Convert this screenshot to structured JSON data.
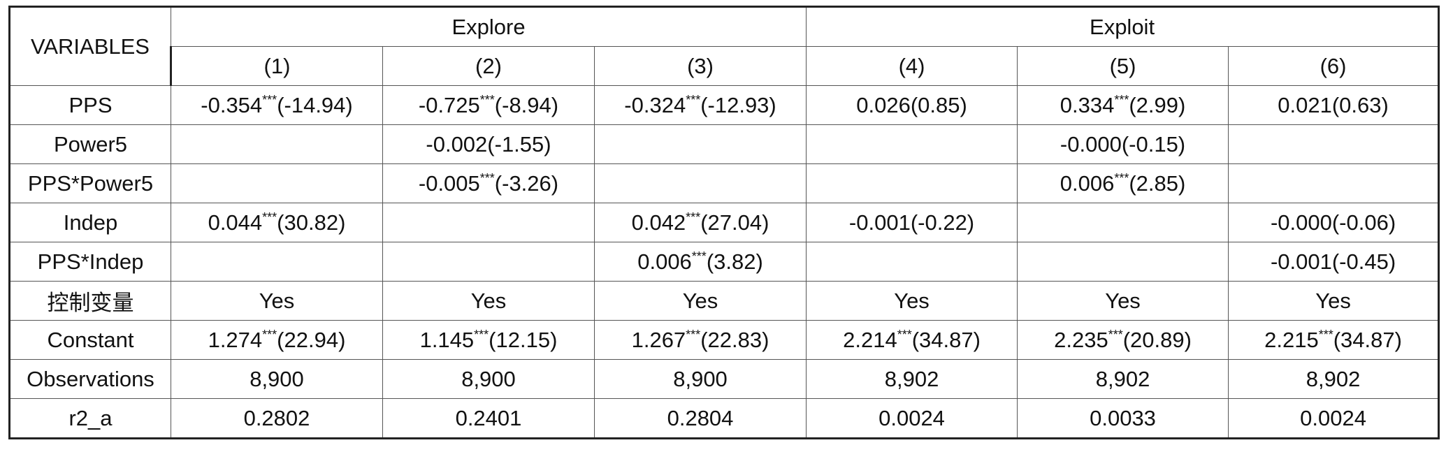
{
  "table": {
    "corner_label": "VARIABLES",
    "groups": [
      {
        "label": "Explore",
        "span": 3
      },
      {
        "label": "Exploit",
        "span": 3
      }
    ],
    "columns": [
      "(1)",
      "(2)",
      "(3)",
      "(4)",
      "(5)",
      "(6)"
    ],
    "rows": [
      {
        "label": "PPS",
        "cells": [
          {
            "coef": "-0.354",
            "stars": "***",
            "t": "(-14.94)"
          },
          {
            "coef": "-0.725",
            "stars": "***",
            "t": "(-8.94)"
          },
          {
            "coef": "-0.324",
            "stars": "***",
            "t": "(-12.93)"
          },
          {
            "coef": "0.026",
            "stars": "",
            "t": "(0.85)"
          },
          {
            "coef": "0.334",
            "stars": "***",
            "t": "(2.99)"
          },
          {
            "coef": "0.021",
            "stars": "",
            "t": "(0.63)"
          }
        ]
      },
      {
        "label": "Power5",
        "cells": [
          {
            "coef": "",
            "stars": "",
            "t": ""
          },
          {
            "coef": "-0.002",
            "stars": "",
            "t": "(-1.55)"
          },
          {
            "coef": "",
            "stars": "",
            "t": ""
          },
          {
            "coef": "",
            "stars": "",
            "t": ""
          },
          {
            "coef": "-0.000",
            "stars": "",
            "t": "(-0.15)"
          },
          {
            "coef": "",
            "stars": "",
            "t": ""
          }
        ]
      },
      {
        "label": "PPS*Power5",
        "cells": [
          {
            "coef": "",
            "stars": "",
            "t": ""
          },
          {
            "coef": "-0.005",
            "stars": "***",
            "t": "(-3.26)"
          },
          {
            "coef": "",
            "stars": "",
            "t": ""
          },
          {
            "coef": "",
            "stars": "",
            "t": ""
          },
          {
            "coef": "0.006",
            "stars": "***",
            "t": "(2.85)"
          },
          {
            "coef": "",
            "stars": "",
            "t": ""
          }
        ]
      },
      {
        "label": "Indep",
        "cells": [
          {
            "coef": "0.044",
            "stars": "***",
            "t": "(30.82)"
          },
          {
            "coef": "",
            "stars": "",
            "t": ""
          },
          {
            "coef": "0.042",
            "stars": "***",
            "t": "(27.04)"
          },
          {
            "coef": "-0.001",
            "stars": "",
            "t": "(-0.22)"
          },
          {
            "coef": "",
            "stars": "",
            "t": ""
          },
          {
            "coef": "-0.000",
            "stars": "",
            "t": "(-0.06)"
          }
        ]
      },
      {
        "label": "PPS*Indep",
        "cells": [
          {
            "coef": "",
            "stars": "",
            "t": ""
          },
          {
            "coef": "",
            "stars": "",
            "t": ""
          },
          {
            "coef": "0.006",
            "stars": "***",
            "t": "(3.82)"
          },
          {
            "coef": "",
            "stars": "",
            "t": ""
          },
          {
            "coef": "",
            "stars": "",
            "t": ""
          },
          {
            "coef": "-0.001",
            "stars": "",
            "t": "(-0.45)"
          }
        ]
      },
      {
        "label": "控制变量",
        "cells": [
          {
            "coef": "Yes",
            "stars": "",
            "t": ""
          },
          {
            "coef": "Yes",
            "stars": "",
            "t": ""
          },
          {
            "coef": "Yes",
            "stars": "",
            "t": ""
          },
          {
            "coef": "Yes",
            "stars": "",
            "t": ""
          },
          {
            "coef": "Yes",
            "stars": "",
            "t": ""
          },
          {
            "coef": "Yes",
            "stars": "",
            "t": ""
          }
        ]
      },
      {
        "label": "Constant",
        "cells": [
          {
            "coef": "1.274",
            "stars": "***",
            "t": "(22.94)"
          },
          {
            "coef": "1.145",
            "stars": "***",
            "t": "(12.15)"
          },
          {
            "coef": "1.267",
            "stars": "***",
            "t": "(22.83)"
          },
          {
            "coef": "2.214",
            "stars": "***",
            "t": "(34.87)"
          },
          {
            "coef": "2.235",
            "stars": "***",
            "t": "(20.89)"
          },
          {
            "coef": "2.215",
            "stars": "***",
            "t": "(34.87)"
          }
        ]
      },
      {
        "label": "Observations",
        "cells": [
          {
            "coef": "8,900",
            "stars": "",
            "t": ""
          },
          {
            "coef": "8,900",
            "stars": "",
            "t": ""
          },
          {
            "coef": "8,900",
            "stars": "",
            "t": ""
          },
          {
            "coef": "8,902",
            "stars": "",
            "t": ""
          },
          {
            "coef": "8,902",
            "stars": "",
            "t": ""
          },
          {
            "coef": "8,902",
            "stars": "",
            "t": ""
          }
        ]
      },
      {
        "label": "r2_a",
        "cells": [
          {
            "coef": "0.2802",
            "stars": "",
            "t": ""
          },
          {
            "coef": "0.2401",
            "stars": "",
            "t": ""
          },
          {
            "coef": "0.2804",
            "stars": "",
            "t": ""
          },
          {
            "coef": "0.0024",
            "stars": "",
            "t": ""
          },
          {
            "coef": "0.0033",
            "stars": "",
            "t": ""
          },
          {
            "coef": "0.0024",
            "stars": "",
            "t": ""
          }
        ]
      }
    ]
  }
}
